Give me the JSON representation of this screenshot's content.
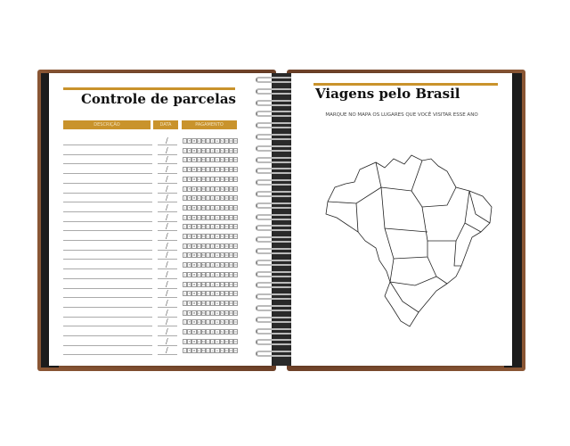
{
  "left_page": {
    "title": "Controle de parcelas",
    "headers": {
      "description": "DESCRIÇÃO",
      "date": "DATA",
      "payment": "PAGAMENTO"
    },
    "row_count": 23,
    "date_separator": "/",
    "months": [
      "J",
      "F",
      "M",
      "A",
      "M",
      "J",
      "J",
      "A",
      "S",
      "O",
      "N",
      "D"
    ]
  },
  "right_page": {
    "title": "Viagens pelo Brasil",
    "instruction": "MARQUE NO MAPA OS LUGARES QUE VOCÊ VISITAR ESSE ANO",
    "map": "brazil-states-outline"
  },
  "colors": {
    "accent": "#c9932c",
    "cover": "#7a4a2e",
    "cover_inner": "#1c1c1c"
  }
}
